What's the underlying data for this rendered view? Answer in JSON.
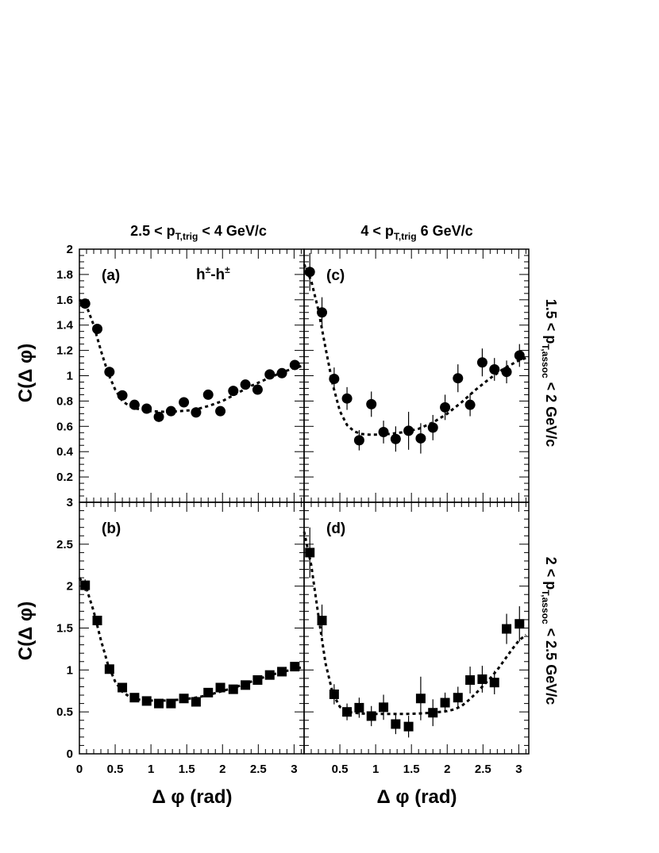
{
  "header": {
    "col_left": {
      "pre": "2.5 < p",
      "sub": "T,trig",
      "post": " < 4 GeV/c"
    },
    "col_right": {
      "pre": "4 < p",
      "sub": "T,trig",
      "post": " 6 GeV/c"
    },
    "row_top": {
      "pre": "1.5 < p",
      "sub": "T,assoc",
      "post": " < 2 GeV/c"
    },
    "row_bottom": {
      "pre": "2 < p",
      "sub": "T,assoc",
      "post": " < 2.5 GeV/c"
    }
  },
  "axes": {
    "ylabel": "C(Δ φ)",
    "xlabel": "Δ φ (rad)"
  },
  "species_label": {
    "h": "h",
    "sup1": "±",
    "dash": "-h",
    "sup2": "±"
  },
  "chart_data": [
    {
      "type": "scatter",
      "panel": "(a)",
      "marker": "circle",
      "xlim": [
        0,
        3.14
      ],
      "ylim": [
        0,
        2
      ],
      "xticks": [],
      "yticks": [
        "0.2",
        "0.4",
        "0.6",
        "0.8",
        "1",
        "1.2",
        "1.4",
        "1.6",
        "1.8",
        "2"
      ],
      "yticks_values": [
        0.2,
        0.4,
        0.6,
        0.8,
        1.0,
        1.2,
        1.4,
        1.6,
        1.8,
        2.0
      ],
      "points": [
        {
          "x": 0.08,
          "y": 1.57,
          "e": 0.03
        },
        {
          "x": 0.25,
          "y": 1.37,
          "e": 0.02
        },
        {
          "x": 0.42,
          "y": 1.03,
          "e": 0.02
        },
        {
          "x": 0.6,
          "y": 0.845,
          "e": 0.02
        },
        {
          "x": 0.77,
          "y": 0.77,
          "e": 0.02
        },
        {
          "x": 0.94,
          "y": 0.74,
          "e": 0.02
        },
        {
          "x": 1.11,
          "y": 0.675,
          "e": 0.03
        },
        {
          "x": 1.28,
          "y": 0.72,
          "e": 0.03
        },
        {
          "x": 1.46,
          "y": 0.79,
          "e": 0.04
        },
        {
          "x": 1.63,
          "y": 0.71,
          "e": 0.04
        },
        {
          "x": 1.8,
          "y": 0.85,
          "e": 0.03
        },
        {
          "x": 1.97,
          "y": 0.72,
          "e": 0.03
        },
        {
          "x": 2.15,
          "y": 0.88,
          "e": 0.02
        },
        {
          "x": 2.32,
          "y": 0.93,
          "e": 0.02
        },
        {
          "x": 2.49,
          "y": 0.89,
          "e": 0.02
        },
        {
          "x": 2.66,
          "y": 1.01,
          "e": 0.02
        },
        {
          "x": 2.83,
          "y": 1.02,
          "e": 0.02
        },
        {
          "x": 3.01,
          "y": 1.085,
          "e": 0.02
        }
      ],
      "fit": [
        [
          0,
          1.6
        ],
        [
          0.1,
          1.55
        ],
        [
          0.2,
          1.4
        ],
        [
          0.3,
          1.2
        ],
        [
          0.4,
          1.02
        ],
        [
          0.5,
          0.89
        ],
        [
          0.6,
          0.8
        ],
        [
          0.7,
          0.76
        ],
        [
          0.8,
          0.74
        ],
        [
          0.9,
          0.73
        ],
        [
          1.0,
          0.72
        ],
        [
          1.2,
          0.715
        ],
        [
          1.4,
          0.72
        ],
        [
          1.6,
          0.73
        ],
        [
          1.8,
          0.76
        ],
        [
          2.0,
          0.8
        ],
        [
          2.2,
          0.86
        ],
        [
          2.4,
          0.92
        ],
        [
          2.6,
          0.97
        ],
        [
          2.8,
          1.02
        ],
        [
          3.0,
          1.06
        ],
        [
          3.1,
          1.075
        ]
      ]
    },
    {
      "type": "scatter",
      "panel": "(c)",
      "marker": "circle",
      "xlim": [
        0,
        3.14
      ],
      "ylim": [
        0,
        2
      ],
      "xticks": [],
      "yticks": [],
      "points": [
        {
          "x": 0.08,
          "y": 1.82,
          "e": 0.15
        },
        {
          "x": 0.25,
          "y": 1.5,
          "e": 0.12
        },
        {
          "x": 0.42,
          "y": 0.975,
          "e": 0.09
        },
        {
          "x": 0.6,
          "y": 0.82,
          "e": 0.09
        },
        {
          "x": 0.77,
          "y": 0.49,
          "e": 0.08
        },
        {
          "x": 0.94,
          "y": 0.775,
          "e": 0.1
        },
        {
          "x": 1.11,
          "y": 0.555,
          "e": 0.09
        },
        {
          "x": 1.28,
          "y": 0.5,
          "e": 0.1
        },
        {
          "x": 1.46,
          "y": 0.565,
          "e": 0.15
        },
        {
          "x": 1.63,
          "y": 0.505,
          "e": 0.12
        },
        {
          "x": 1.8,
          "y": 0.59,
          "e": 0.1
        },
        {
          "x": 1.97,
          "y": 0.75,
          "e": 0.1
        },
        {
          "x": 2.15,
          "y": 0.98,
          "e": 0.11
        },
        {
          "x": 2.32,
          "y": 0.77,
          "e": 0.09
        },
        {
          "x": 2.49,
          "y": 1.105,
          "e": 0.11
        },
        {
          "x": 2.66,
          "y": 1.05,
          "e": 0.09
        },
        {
          "x": 2.83,
          "y": 1.03,
          "e": 0.09
        },
        {
          "x": 3.01,
          "y": 1.16,
          "e": 0.09
        }
      ],
      "fit": [
        [
          0,
          1.88
        ],
        [
          0.1,
          1.75
        ],
        [
          0.2,
          1.52
        ],
        [
          0.3,
          1.22
        ],
        [
          0.4,
          0.93
        ],
        [
          0.5,
          0.72
        ],
        [
          0.6,
          0.61
        ],
        [
          0.7,
          0.56
        ],
        [
          0.8,
          0.54
        ],
        [
          0.9,
          0.535
        ],
        [
          1.0,
          0.535
        ],
        [
          1.2,
          0.54
        ],
        [
          1.4,
          0.555
        ],
        [
          1.6,
          0.58
        ],
        [
          1.8,
          0.63
        ],
        [
          2.0,
          0.7
        ],
        [
          2.2,
          0.79
        ],
        [
          2.4,
          0.89
        ],
        [
          2.6,
          0.98
        ],
        [
          2.8,
          1.06
        ],
        [
          3.0,
          1.12
        ],
        [
          3.1,
          1.14
        ]
      ]
    },
    {
      "type": "scatter",
      "panel": "(b)",
      "marker": "square",
      "xlim": [
        0,
        3.14
      ],
      "ylim": [
        0,
        3
      ],
      "xticks": [
        "0",
        "0.5",
        "1",
        "1.5",
        "2",
        "2.5",
        "3"
      ],
      "xticks_values": [
        0,
        0.5,
        1.0,
        1.5,
        2.0,
        2.5,
        3.0
      ],
      "yticks": [
        "0",
        "0.5",
        "1",
        "1.5",
        "2",
        "2.5",
        "3"
      ],
      "yticks_values": [
        0,
        0.5,
        1.0,
        1.5,
        2.0,
        2.5,
        3.0
      ],
      "points": [
        {
          "x": 0.08,
          "y": 2.01,
          "e": 0.07
        },
        {
          "x": 0.25,
          "y": 1.59,
          "e": 0.05
        },
        {
          "x": 0.42,
          "y": 1.01,
          "e": 0.03
        },
        {
          "x": 0.6,
          "y": 0.79,
          "e": 0.03
        },
        {
          "x": 0.77,
          "y": 0.67,
          "e": 0.03
        },
        {
          "x": 0.94,
          "y": 0.63,
          "e": 0.03
        },
        {
          "x": 1.11,
          "y": 0.6,
          "e": 0.03
        },
        {
          "x": 1.28,
          "y": 0.6,
          "e": 0.03
        },
        {
          "x": 1.46,
          "y": 0.66,
          "e": 0.05
        },
        {
          "x": 1.63,
          "y": 0.62,
          "e": 0.05
        },
        {
          "x": 1.8,
          "y": 0.73,
          "e": 0.04
        },
        {
          "x": 1.97,
          "y": 0.79,
          "e": 0.04
        },
        {
          "x": 2.15,
          "y": 0.77,
          "e": 0.03
        },
        {
          "x": 2.32,
          "y": 0.82,
          "e": 0.03
        },
        {
          "x": 2.49,
          "y": 0.88,
          "e": 0.03
        },
        {
          "x": 2.66,
          "y": 0.94,
          "e": 0.03
        },
        {
          "x": 2.83,
          "y": 0.98,
          "e": 0.03
        },
        {
          "x": 3.01,
          "y": 1.04,
          "e": 0.03
        }
      ],
      "fit": [
        [
          0,
          2.1
        ],
        [
          0.1,
          1.97
        ],
        [
          0.2,
          1.7
        ],
        [
          0.3,
          1.36
        ],
        [
          0.4,
          1.06
        ],
        [
          0.5,
          0.86
        ],
        [
          0.6,
          0.74
        ],
        [
          0.7,
          0.68
        ],
        [
          0.8,
          0.65
        ],
        [
          0.9,
          0.64
        ],
        [
          1.0,
          0.635
        ],
        [
          1.2,
          0.635
        ],
        [
          1.4,
          0.645
        ],
        [
          1.6,
          0.665
        ],
        [
          1.8,
          0.7
        ],
        [
          2.0,
          0.75
        ],
        [
          2.2,
          0.8
        ],
        [
          2.4,
          0.86
        ],
        [
          2.6,
          0.92
        ],
        [
          2.8,
          0.97
        ],
        [
          3.0,
          1.01
        ],
        [
          3.1,
          1.03
        ]
      ]
    },
    {
      "type": "scatter",
      "panel": "(d)",
      "marker": "square",
      "xlim": [
        0,
        3.14
      ],
      "ylim": [
        0,
        3
      ],
      "xticks": [
        "0.5",
        "1",
        "1.5",
        "2",
        "2.5",
        "3"
      ],
      "xticks_values": [
        0.5,
        1.0,
        1.5,
        2.0,
        2.5,
        3.0
      ],
      "yticks": [],
      "points": [
        {
          "x": 0.08,
          "y": 2.4,
          "e": 0.3
        },
        {
          "x": 0.25,
          "y": 1.59,
          "e": 0.19
        },
        {
          "x": 0.42,
          "y": 0.71,
          "e": 0.12
        },
        {
          "x": 0.6,
          "y": 0.5,
          "e": 0.1
        },
        {
          "x": 0.77,
          "y": 0.55,
          "e": 0.12
        },
        {
          "x": 0.94,
          "y": 0.45,
          "e": 0.12
        },
        {
          "x": 1.11,
          "y": 0.555,
          "e": 0.15
        },
        {
          "x": 1.28,
          "y": 0.355,
          "e": 0.12
        },
        {
          "x": 1.46,
          "y": 0.325,
          "e": 0.13
        },
        {
          "x": 1.63,
          "y": 0.66,
          "e": 0.26
        },
        {
          "x": 1.8,
          "y": 0.49,
          "e": 0.16
        },
        {
          "x": 1.97,
          "y": 0.61,
          "e": 0.12
        },
        {
          "x": 2.15,
          "y": 0.67,
          "e": 0.13
        },
        {
          "x": 2.32,
          "y": 0.88,
          "e": 0.16
        },
        {
          "x": 2.49,
          "y": 0.89,
          "e": 0.16
        },
        {
          "x": 2.66,
          "y": 0.85,
          "e": 0.14
        },
        {
          "x": 2.83,
          "y": 1.49,
          "e": 0.18
        },
        {
          "x": 3.01,
          "y": 1.55,
          "e": 0.21
        }
      ],
      "fit": [
        [
          0,
          2.65
        ],
        [
          0.1,
          2.25
        ],
        [
          0.2,
          1.65
        ],
        [
          0.3,
          1.08
        ],
        [
          0.4,
          0.72
        ],
        [
          0.5,
          0.56
        ],
        [
          0.6,
          0.5
        ],
        [
          0.8,
          0.48
        ],
        [
          1.0,
          0.475
        ],
        [
          1.2,
          0.475
        ],
        [
          1.4,
          0.475
        ],
        [
          1.6,
          0.48
        ],
        [
          1.8,
          0.49
        ],
        [
          2.0,
          0.51
        ],
        [
          2.1,
          0.53
        ],
        [
          2.2,
          0.57
        ],
        [
          2.3,
          0.64
        ],
        [
          2.4,
          0.72
        ],
        [
          2.5,
          0.81
        ],
        [
          2.6,
          0.9
        ],
        [
          2.7,
          1.0
        ],
        [
          2.8,
          1.12
        ],
        [
          2.9,
          1.24
        ],
        [
          3.0,
          1.35
        ],
        [
          3.1,
          1.42
        ]
      ]
    }
  ]
}
